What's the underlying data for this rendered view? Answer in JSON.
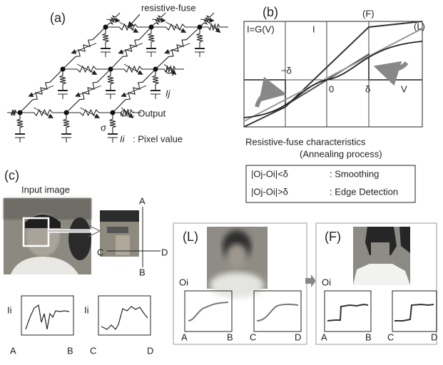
{
  "panel_a": {
    "label": "(a)",
    "fuse_label": "resistive-fuse",
    "node_oj": "Oj",
    "node_ij": "Ij",
    "node_oi": "Oi",
    "output_text": ": Output",
    "sigma": "σ",
    "node_ii": "Ii",
    "pixel_text": ": Pixel value"
  },
  "panel_b": {
    "label": "(b)",
    "curve_f": "(F)",
    "curve_l": "(L)",
    "function": "I=G(V)",
    "axis_i": "I",
    "minus_delta": "−δ",
    "origin": "0",
    "delta": "δ",
    "axis_v": "V",
    "caption": "Resistive-fuse characteristics",
    "caption_sub": "(Annealing process)",
    "rules": [
      {
        "condition": "|Oj-Oi|<δ",
        "result": ": Smoothing"
      },
      {
        "condition": "|Oj-Oi|>δ",
        "result": ": Edge Detection"
      }
    ]
  },
  "panel_c": {
    "label": "(c)",
    "input_caption": "Input image",
    "cross": {
      "top": "A",
      "bottom": "B",
      "left": "C",
      "right": "D"
    },
    "plots": [
      {
        "y_label": "Ii",
        "start": "A",
        "end": "B"
      },
      {
        "y_label": "Ii",
        "start": "C",
        "end": "D"
      }
    ]
  },
  "results": [
    {
      "label": "(L)",
      "y_label": "Oi",
      "plots": [
        {
          "start": "A",
          "end": "B"
        },
        {
          "start": "C",
          "end": "D"
        }
      ]
    },
    {
      "label": "(F)",
      "y_label": "Oi",
      "plots": [
        {
          "start": "A",
          "end": "B"
        },
        {
          "start": "C",
          "end": "D"
        }
      ]
    }
  ]
}
